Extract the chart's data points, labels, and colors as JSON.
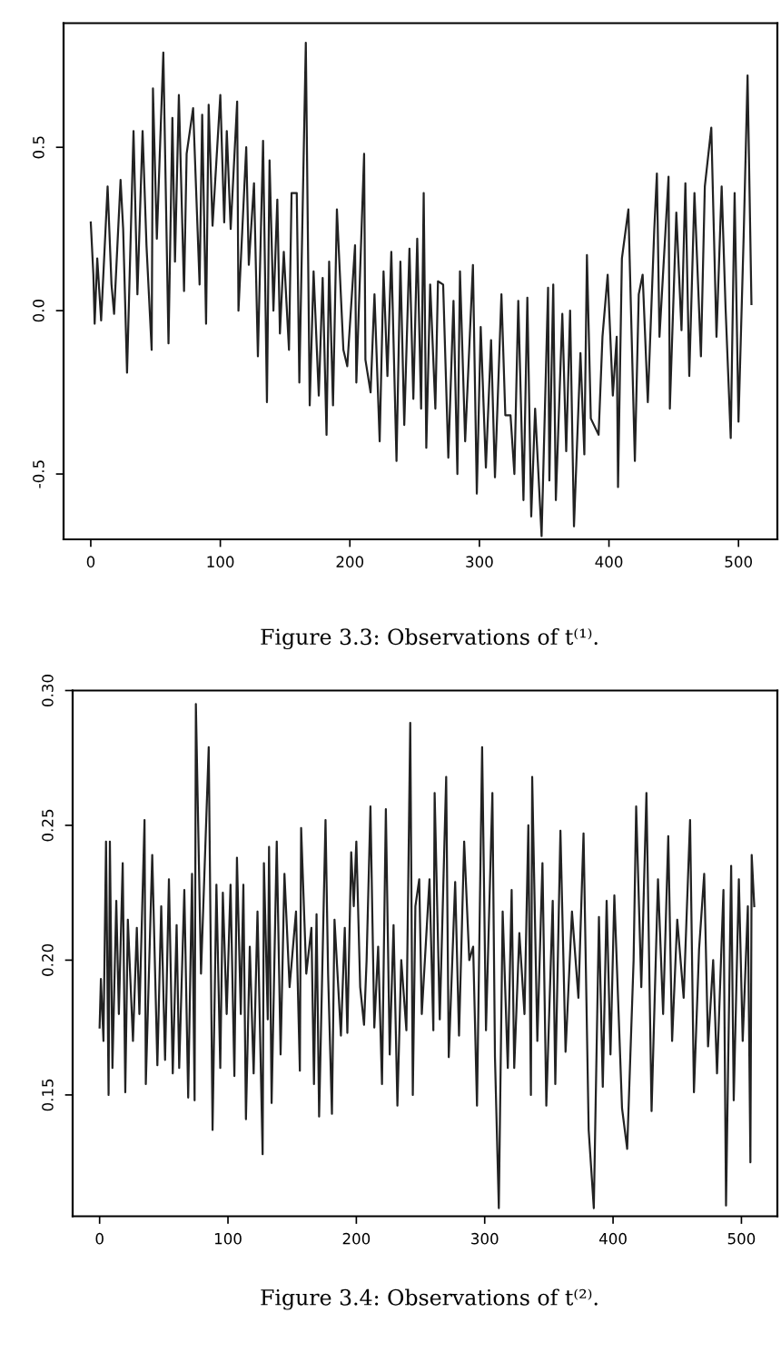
{
  "chart_data": [
    {
      "type": "line",
      "annotations": [
        "Figure 3.3: Observations of t⁽¹⁾."
      ],
      "xlim": [
        -21,
        530
      ],
      "ylim": [
        -0.7,
        0.88
      ],
      "xticks": [
        0,
        100,
        200,
        300,
        400,
        500
      ],
      "yticks": [
        -0.5,
        {
          "value": 0,
          "label": "0.0"
        },
        0.5
      ],
      "series": [
        {
          "color": "#222222",
          "x": [
            0,
            2,
            3,
            5,
            8,
            13,
            16,
            18,
            23,
            25,
            28,
            33,
            36,
            40,
            43,
            47,
            48,
            51,
            56,
            60,
            63,
            65,
            68,
            72,
            74,
            79,
            84,
            86,
            89,
            91,
            94,
            100,
            103,
            105,
            108,
            113,
            114,
            120,
            122,
            126,
            129,
            133,
            136,
            138,
            141,
            144,
            146,
            149,
            153,
            155,
            159,
            161,
            166,
            169,
            172,
            176,
            179,
            182,
            184,
            187,
            190,
            195,
            198,
            204,
            205,
            211,
            212,
            216,
            219,
            223,
            226,
            229,
            232,
            236,
            239,
            242,
            246,
            249,
            252,
            255,
            257,
            259,
            262,
            266,
            268,
            272,
            276,
            280,
            283,
            285,
            289,
            295,
            298,
            301,
            305,
            309,
            312,
            317,
            320,
            324,
            327,
            330,
            334,
            337,
            340,
            343,
            348,
            353,
            354,
            357,
            359,
            364,
            367,
            370,
            373,
            378,
            381,
            383,
            386,
            392,
            395,
            399,
            403,
            406,
            407,
            410,
            415,
            420,
            423,
            426,
            430,
            435,
            437,
            439,
            446,
            447,
            452,
            456,
            459,
            462,
            466,
            471,
            474,
            479,
            483,
            487,
            490,
            494,
            497,
            500,
            504,
            507,
            510
          ],
          "values": [
            0.27,
            0.11,
            -0.04,
            0.16,
            -0.03,
            0.38,
            0.08,
            -0.01,
            0.4,
            0.25,
            -0.19,
            0.55,
            0.05,
            0.55,
            0.2,
            -0.12,
            0.68,
            0.22,
            0.79,
            -0.1,
            0.59,
            0.15,
            0.66,
            0.06,
            0.48,
            0.62,
            0.08,
            0.6,
            -0.04,
            0.63,
            0.26,
            0.66,
            0.27,
            0.55,
            0.25,
            0.64,
            0.0,
            0.5,
            0.14,
            0.39,
            -0.14,
            0.52,
            -0.28,
            0.46,
            0.0,
            0.34,
            -0.07,
            0.18,
            -0.12,
            0.36,
            0.36,
            -0.22,
            0.82,
            -0.29,
            0.12,
            -0.26,
            0.1,
            -0.38,
            0.15,
            -0.29,
            0.31,
            -0.12,
            -0.17,
            0.2,
            -0.22,
            0.48,
            -0.15,
            -0.25,
            0.05,
            -0.4,
            0.12,
            -0.2,
            0.18,
            -0.46,
            0.15,
            -0.35,
            0.19,
            -0.27,
            0.22,
            -0.3,
            0.36,
            -0.42,
            0.08,
            -0.3,
            0.09,
            0.08,
            -0.45,
            0.03,
            -0.5,
            0.12,
            -0.4,
            0.14,
            -0.56,
            -0.05,
            -0.48,
            -0.09,
            -0.51,
            0.05,
            -0.32,
            -0.32,
            -0.5,
            0.03,
            -0.58,
            0.04,
            -0.63,
            -0.3,
            -0.69,
            0.07,
            -0.52,
            0.08,
            -0.58,
            -0.01,
            -0.43,
            0.0,
            -0.66,
            -0.13,
            -0.44,
            0.17,
            -0.33,
            -0.38,
            -0.08,
            0.11,
            -0.26,
            -0.08,
            -0.54,
            0.16,
            0.31,
            -0.46,
            0.05,
            0.11,
            -0.28,
            0.25,
            0.42,
            -0.08,
            0.41,
            -0.3,
            0.3,
            -0.06,
            0.39,
            -0.2,
            0.36,
            -0.14,
            0.38,
            0.56,
            -0.08,
            0.38,
            0.01,
            -0.39,
            0.36,
            -0.34,
            0.23,
            0.72,
            0.02
          ]
        }
      ]
    },
    {
      "type": "line",
      "annotations": [
        "Figure 3.4: Observations of t⁽²⁾."
      ],
      "xlim": [
        -21,
        528
      ],
      "ylim": [
        0.105,
        0.3
      ],
      "xticks": [
        0,
        100,
        200,
        300,
        400,
        500
      ],
      "yticks": [
        {
          "value": 0.15,
          "label": "0.15"
        },
        {
          "value": 0.2,
          "label": "0.20"
        },
        {
          "value": 0.25,
          "label": "0.25"
        },
        {
          "value": 0.3,
          "label": "0.30"
        }
      ],
      "series": [
        {
          "color": "#222222",
          "x": [
            0,
            1,
            3,
            5,
            7,
            8,
            10,
            13,
            15,
            18,
            20,
            22,
            26,
            29,
            31,
            35,
            36,
            41,
            45,
            48,
            51,
            54,
            57,
            60,
            62,
            66,
            69,
            72,
            74,
            75,
            79,
            85,
            88,
            91,
            94,
            96,
            99,
            102,
            105,
            107,
            110,
            112,
            114,
            117,
            120,
            123,
            127,
            128,
            131,
            132,
            134,
            138,
            141,
            144,
            148,
            153,
            156,
            157,
            161,
            165,
            167,
            169,
            171,
            176,
            178,
            181,
            183,
            188,
            191,
            193,
            196,
            198,
            200,
            203,
            206,
            208,
            211,
            214,
            217,
            220,
            223,
            226,
            229,
            232,
            235,
            239,
            242,
            244,
            246,
            249,
            251,
            257,
            260,
            261,
            265,
            270,
            272,
            277,
            280,
            284,
            288,
            291,
            294,
            298,
            301,
            306,
            308,
            311,
            314,
            318,
            321,
            323,
            327,
            331,
            334,
            336,
            337,
            341,
            345,
            348,
            353,
            355,
            359,
            363,
            368,
            373,
            377,
            381,
            385,
            389,
            392,
            395,
            398,
            401,
            407,
            411,
            416,
            418,
            422,
            426,
            430,
            435,
            439,
            443,
            446,
            450,
            455,
            460,
            463,
            467,
            471,
            474,
            478,
            481,
            486,
            488,
            492,
            494,
            498,
            501,
            505,
            507,
            508,
            510
          ],
          "values": [
            0.175,
            0.193,
            0.17,
            0.244,
            0.15,
            0.244,
            0.16,
            0.222,
            0.18,
            0.236,
            0.151,
            0.215,
            0.17,
            0.212,
            0.18,
            0.252,
            0.154,
            0.239,
            0.161,
            0.22,
            0.163,
            0.23,
            0.158,
            0.213,
            0.16,
            0.226,
            0.149,
            0.232,
            0.148,
            0.295,
            0.195,
            0.279,
            0.137,
            0.228,
            0.16,
            0.225,
            0.18,
            0.228,
            0.157,
            0.238,
            0.18,
            0.228,
            0.141,
            0.205,
            0.158,
            0.218,
            0.128,
            0.236,
            0.178,
            0.242,
            0.147,
            0.244,
            0.165,
            0.232,
            0.19,
            0.218,
            0.159,
            0.249,
            0.195,
            0.212,
            0.154,
            0.217,
            0.142,
            0.252,
            0.195,
            0.143,
            0.215,
            0.172,
            0.212,
            0.173,
            0.24,
            0.22,
            0.244,
            0.19,
            0.176,
            0.2,
            0.257,
            0.175,
            0.205,
            0.154,
            0.256,
            0.165,
            0.213,
            0.146,
            0.2,
            0.174,
            0.288,
            0.15,
            0.22,
            0.23,
            0.18,
            0.23,
            0.174,
            0.262,
            0.178,
            0.268,
            0.164,
            0.229,
            0.172,
            0.244,
            0.2,
            0.205,
            0.146,
            0.279,
            0.174,
            0.262,
            0.164,
            0.108,
            0.218,
            0.16,
            0.226,
            0.16,
            0.21,
            0.18,
            0.25,
            0.15,
            0.268,
            0.17,
            0.236,
            0.146,
            0.222,
            0.154,
            0.248,
            0.166,
            0.218,
            0.186,
            0.247,
            0.137,
            0.108,
            0.216,
            0.153,
            0.222,
            0.165,
            0.224,
            0.145,
            0.13,
            0.2,
            0.257,
            0.19,
            0.262,
            0.144,
            0.23,
            0.18,
            0.246,
            0.17,
            0.215,
            0.186,
            0.252,
            0.151,
            0.204,
            0.232,
            0.168,
            0.2,
            0.158,
            0.226,
            0.109,
            0.235,
            0.148,
            0.23,
            0.17,
            0.22,
            0.125,
            0.239,
            0.22
          ]
        }
      ]
    }
  ]
}
